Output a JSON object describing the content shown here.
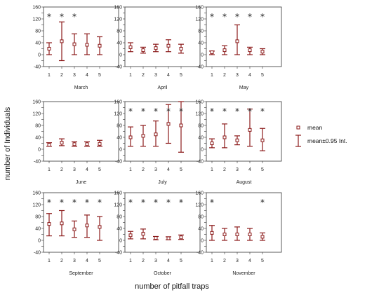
{
  "figure": {
    "xlabel": "number of pitfall traps",
    "ylabel": "number of Individuals"
  },
  "legend": {
    "mean_label": "mean",
    "ci_label": "mean±0.95 Int."
  },
  "colors": {
    "series": "#8b1a1a",
    "frame": "#333333",
    "text": "#222222"
  },
  "chart_data": [
    {
      "type": "scatter",
      "title": "March",
      "x": [
        1,
        2,
        3,
        4,
        5
      ],
      "ylim": [
        -40,
        160
      ],
      "yticks": [
        -40,
        -20,
        0,
        20,
        40,
        60,
        80,
        100,
        120,
        140,
        160
      ],
      "mean": [
        20,
        45,
        35,
        33,
        30
      ],
      "lower": [
        0,
        -20,
        0,
        0,
        0
      ],
      "upper": [
        40,
        110,
        70,
        70,
        60
      ],
      "significant": [
        true,
        true,
        true,
        false,
        false
      ]
    },
    {
      "type": "scatter",
      "title": "April",
      "x": [
        1,
        2,
        3,
        4,
        5
      ],
      "ylim": [
        -40,
        160
      ],
      "yticks": [
        -40,
        -20,
        0,
        20,
        40,
        60,
        80,
        100,
        120,
        140,
        160
      ],
      "mean": [
        25,
        15,
        22,
        30,
        20
      ],
      "lower": [
        10,
        5,
        10,
        10,
        5
      ],
      "upper": [
        40,
        25,
        35,
        50,
        35
      ],
      "significant": [
        false,
        false,
        false,
        false,
        false
      ]
    },
    {
      "type": "scatter",
      "title": "May",
      "x": [
        1,
        2,
        3,
        4,
        5
      ],
      "ylim": [
        -40,
        160
      ],
      "yticks": [
        -40,
        -20,
        0,
        20,
        40,
        60,
        80,
        100,
        120,
        140,
        160
      ],
      "mean": [
        8,
        15,
        45,
        15,
        10
      ],
      "lower": [
        0,
        0,
        0,
        0,
        0
      ],
      "upper": [
        12,
        30,
        100,
        25,
        20
      ],
      "significant": [
        true,
        true,
        true,
        true,
        true
      ]
    },
    {
      "type": "scatter",
      "title": "June",
      "x": [
        1,
        2,
        3,
        4,
        5
      ],
      "ylim": [
        -40,
        160
      ],
      "yticks": [
        -40,
        -20,
        0,
        20,
        40,
        60,
        80,
        100,
        120,
        140,
        160
      ],
      "mean": [
        15,
        22,
        17,
        17,
        18
      ],
      "lower": [
        10,
        12,
        10,
        10,
        10
      ],
      "upper": [
        22,
        35,
        25,
        25,
        30
      ],
      "significant": [
        false,
        false,
        false,
        false,
        false
      ]
    },
    {
      "type": "scatter",
      "title": "July",
      "x": [
        1,
        2,
        3,
        4,
        5
      ],
      "ylim": [
        -40,
        160
      ],
      "yticks": [
        -40,
        -20,
        0,
        20,
        40,
        60,
        80,
        100,
        120,
        140,
        160
      ],
      "mean": [
        40,
        45,
        50,
        85,
        80
      ],
      "lower": [
        10,
        10,
        10,
        20,
        -10
      ],
      "upper": [
        75,
        80,
        95,
        150,
        165
      ],
      "significant": [
        true,
        true,
        true,
        true,
        true
      ]
    },
    {
      "type": "scatter",
      "title": "August",
      "x": [
        1,
        2,
        3,
        4,
        5
      ],
      "ylim": [
        -40,
        160
      ],
      "yticks": [
        -40,
        -20,
        0,
        20,
        40,
        60,
        80,
        100,
        120,
        140,
        160
      ],
      "mean": [
        20,
        40,
        30,
        65,
        30
      ],
      "lower": [
        5,
        5,
        15,
        10,
        -5
      ],
      "upper": [
        35,
        85,
        45,
        135,
        70
      ],
      "significant": [
        true,
        true,
        true,
        true,
        true
      ]
    },
    {
      "type": "scatter",
      "title": "September",
      "x": [
        1,
        2,
        3,
        4,
        5
      ],
      "ylim": [
        -40,
        160
      ],
      "yticks": [
        -40,
        -20,
        0,
        20,
        40,
        60,
        80,
        100,
        120,
        140,
        160
      ],
      "mean": [
        55,
        57,
        37,
        50,
        45
      ],
      "lower": [
        15,
        15,
        10,
        10,
        0
      ],
      "upper": [
        90,
        100,
        65,
        85,
        80
      ],
      "significant": [
        true,
        true,
        true,
        true,
        true
      ]
    },
    {
      "type": "scatter",
      "title": "October",
      "x": [
        1,
        2,
        3,
        4,
        5
      ],
      "ylim": [
        -40,
        160
      ],
      "yticks": [
        -40,
        -20,
        0,
        20,
        40,
        60,
        80,
        100,
        120,
        140,
        160
      ],
      "mean": [
        17,
        22,
        8,
        7,
        10
      ],
      "lower": [
        5,
        5,
        2,
        2,
        3
      ],
      "upper": [
        30,
        38,
        13,
        12,
        18
      ],
      "significant": [
        true,
        true,
        true,
        true,
        true
      ]
    },
    {
      "type": "scatter",
      "title": "November",
      "x": [
        1,
        2,
        3,
        4,
        5
      ],
      "ylim": [
        -40,
        160
      ],
      "yticks": [
        -40,
        -20,
        0,
        20,
        40,
        60,
        80,
        100,
        120,
        140,
        160
      ],
      "mean": [
        25,
        20,
        20,
        20,
        12
      ],
      "lower": [
        0,
        0,
        0,
        0,
        0
      ],
      "upper": [
        50,
        40,
        45,
        40,
        25
      ],
      "significant": [
        true,
        false,
        false,
        false,
        true
      ]
    }
  ]
}
